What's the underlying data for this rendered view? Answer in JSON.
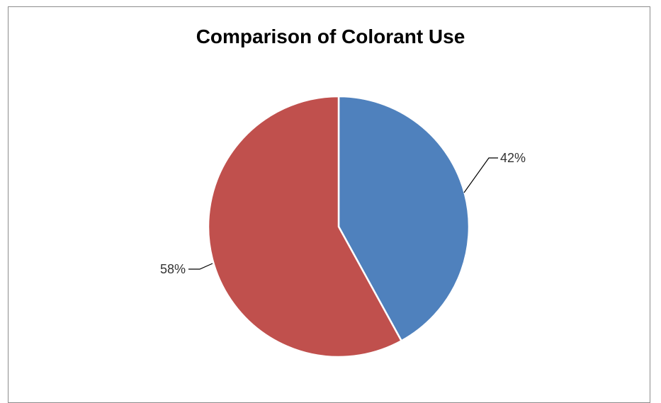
{
  "chart_data": {
    "type": "pie",
    "title": "Comparison of Colorant Use",
    "slices": [
      {
        "value": 42,
        "label": "42%",
        "color": "#4f81bd"
      },
      {
        "value": 58,
        "label": "58%",
        "color": "#c0504d"
      }
    ],
    "legend": "none"
  }
}
